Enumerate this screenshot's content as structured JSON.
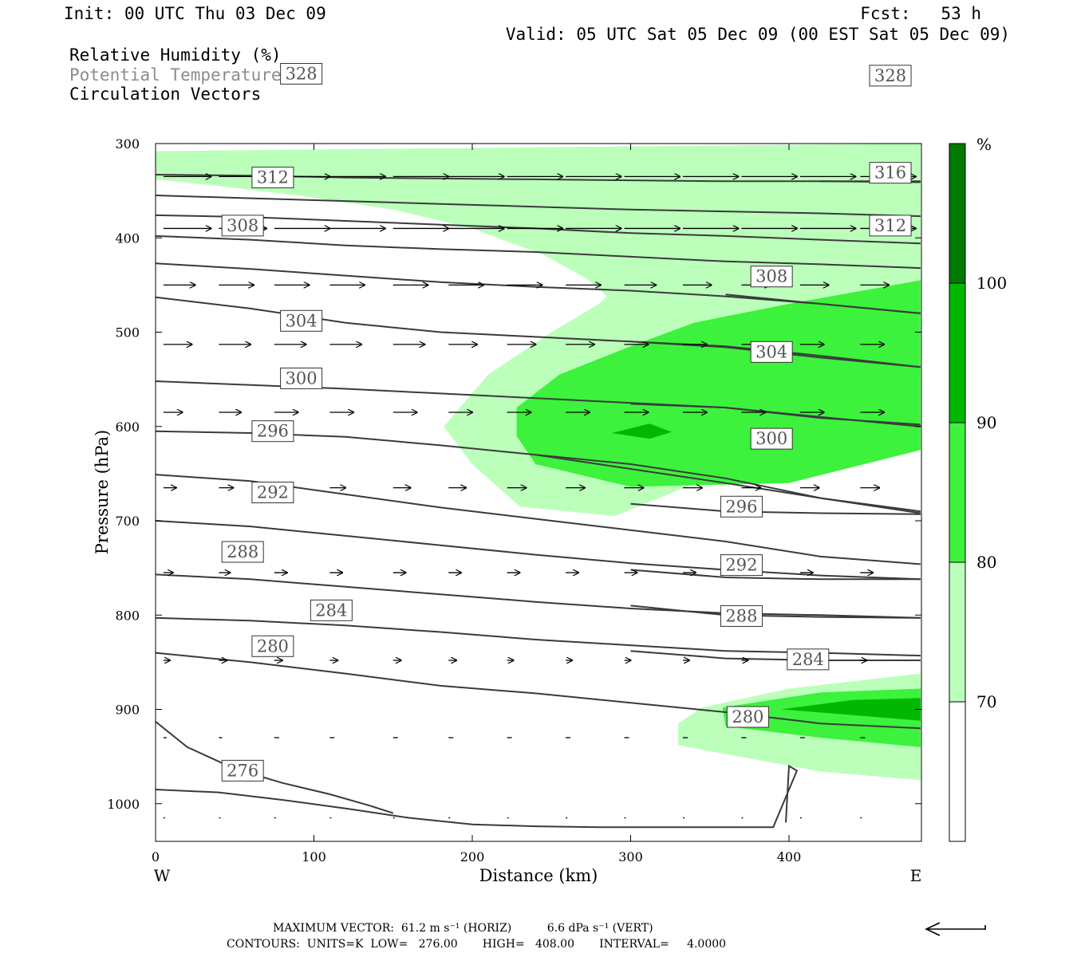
{
  "header": {
    "init": "Init: 00 UTC Thu 03 Dec 09",
    "fcst": "Fcst:   53 h",
    "valid": "Valid: 05 UTC Sat 05 Dec 09 (00 EST Sat 05 Dec 09)",
    "legend_lines": [
      "Relative Humidity (%)",
      "Potential Temperature (K)",
      "Circulation Vectors"
    ]
  },
  "footer": {
    "max_vector": "MAXIMUM VECTOR:  61.2 m s⁻¹ (HORIZ)          6.6 dPa s⁻¹ (VERT)",
    "contours": "CONTOURS:  UNITS=K  LOW=   276.00       HIGH=   408.00       INTERVAL=     4.0000"
  },
  "colors": {
    "rh70": "#bbffbb",
    "rh80": "#3cf23c",
    "rh90": "#00b800",
    "rh100": "#007a00",
    "contour": "#3a3a3a"
  },
  "chart_data": {
    "type": "contour",
    "xlabel": "Distance (km)",
    "ylabel": "Pressure (hPa)",
    "xlim": [
      0,
      483
    ],
    "ylim": [
      300,
      1040
    ],
    "y_inverted": true,
    "x_ticks": [
      "0",
      "100",
      "200",
      "300",
      "400"
    ],
    "y_ticks": [
      "300",
      "400",
      "500",
      "600",
      "700",
      "800",
      "900",
      "1000"
    ],
    "x_end_labels": {
      "left": "W",
      "right": "E"
    },
    "colorbar": {
      "unit": "%",
      "levels": [
        "70",
        "80",
        "90",
        "100"
      ]
    },
    "rh_regions": [
      {
        "level": 70,
        "points": [
          [
            0,
            308
          ],
          [
            483,
            300
          ],
          [
            483,
            975
          ],
          [
            420,
            966
          ],
          [
            330,
            938
          ],
          [
            330,
            915
          ],
          [
            345,
            898
          ],
          [
            400,
            878
          ],
          [
            483,
            862
          ],
          [
            483,
            600
          ],
          [
            400,
            620
          ],
          [
            290,
            695
          ],
          [
            230,
            685
          ],
          [
            200,
            640
          ],
          [
            182,
            600
          ],
          [
            210,
            545
          ],
          [
            250,
            500
          ],
          [
            280,
            470
          ],
          [
            285,
            462
          ],
          [
            272,
            443
          ],
          [
            245,
            418
          ],
          [
            200,
            390
          ],
          [
            150,
            370
          ],
          [
            90,
            355
          ],
          [
            40,
            345
          ],
          [
            0,
            338
          ]
        ]
      },
      {
        "level": 80,
        "points": [
          [
            483,
            445
          ],
          [
            400,
            470
          ],
          [
            340,
            490
          ],
          [
            300,
            515
          ],
          [
            255,
            545
          ],
          [
            228,
            580
          ],
          [
            228,
            610
          ],
          [
            240,
            640
          ],
          [
            300,
            664
          ],
          [
            400,
            660
          ],
          [
            483,
            625
          ]
        ]
      },
      {
        "level": 80,
        "points": [
          [
            358,
            898
          ],
          [
            420,
            882
          ],
          [
            483,
            878
          ],
          [
            483,
            940
          ],
          [
            420,
            930
          ],
          [
            360,
            918
          ]
        ]
      },
      {
        "level": 90,
        "points": [
          [
            288,
            607
          ],
          [
            312,
            597
          ],
          [
            326,
            606
          ],
          [
            312,
            613
          ]
        ]
      },
      {
        "level": 90,
        "points": [
          [
            395,
            900
          ],
          [
            440,
            890
          ],
          [
            483,
            888
          ],
          [
            483,
            912
          ],
          [
            440,
            906
          ]
        ]
      }
    ],
    "theta_contours": [
      {
        "label": "276",
        "label_pos": [
          55,
          965
        ],
        "x": [
          0,
          20,
          50,
          80,
          110,
          135,
          150
        ],
        "p": [
          913,
          940,
          963,
          978,
          990,
          1002,
          1010
        ]
      },
      {
        "label": "280",
        "label_pos": [
          374,
          908
        ],
        "x": [
          0,
          40,
          80,
          120,
          160,
          200,
          240,
          280,
          320,
          360,
          390,
          405,
          400,
          398
        ],
        "p": [
          985,
          988,
          996,
          1005,
          1015,
          1022,
          1024,
          1025,
          1025,
          1025,
          1025,
          965,
          960,
          1020
        ]
      },
      {
        "label": "280",
        "label_pos": [
          74,
          833
        ],
        "x": [
          0,
          60,
          120,
          180,
          240,
          300,
          360,
          420,
          483
        ],
        "p": [
          840,
          850,
          862,
          875,
          883,
          893,
          903,
          915,
          920
        ]
      },
      {
        "label": "284",
        "label_pos": [
          111,
          795
        ],
        "x": [
          0,
          60,
          120,
          180,
          240,
          300,
          360,
          420,
          483
        ],
        "p": [
          803,
          806,
          811,
          818,
          826,
          832,
          838,
          840,
          843
        ]
      },
      {
        "label": "284",
        "label_pos": [
          412,
          847
        ],
        "x": [
          300,
          360,
          420,
          483
        ],
        "p": [
          838,
          846,
          848,
          848
        ]
      },
      {
        "label": "288",
        "label_pos": [
          55,
          733
        ],
        "x": [
          0,
          60,
          120,
          180,
          240,
          300,
          360,
          420,
          483
        ],
        "p": [
          757,
          762,
          770,
          778,
          786,
          793,
          798,
          800,
          803
        ]
      },
      {
        "label": "288",
        "label_pos": [
          370,
          801
        ],
        "x": [
          300,
          360,
          420,
          483
        ],
        "p": [
          790,
          800,
          802,
          803
        ]
      },
      {
        "label": "292",
        "label_pos": [
          74,
          670
        ],
        "x": [
          0,
          60,
          120,
          180,
          240,
          300,
          360,
          420,
          483
        ],
        "p": [
          700,
          706,
          716,
          726,
          736,
          745,
          752,
          758,
          762
        ]
      },
      {
        "label": "292",
        "label_pos": [
          370,
          747
        ],
        "x": [
          300,
          360,
          420,
          483
        ],
        "p": [
          752,
          760,
          762,
          762
        ]
      },
      {
        "label": "296",
        "label_pos": [
          74,
          605
        ],
        "x": [
          0,
          60,
          120,
          180,
          240,
          300,
          360,
          420,
          483
        ],
        "p": [
          651,
          658,
          672,
          686,
          698,
          710,
          722,
          738,
          746
        ]
      },
      {
        "label": "296",
        "label_pos": [
          370,
          685
        ],
        "x": [
          300,
          360,
          420,
          483
        ],
        "p": [
          682,
          690,
          692,
          693
        ]
      },
      {
        "label": "300",
        "label_pos": [
          92,
          549
        ],
        "x": [
          0,
          60,
          120,
          180,
          240,
          300,
          360,
          420,
          483
        ],
        "p": [
          605,
          607,
          611,
          620,
          630,
          645,
          660,
          676,
          692
        ]
      },
      {
        "label": "300",
        "label_pos": [
          389,
          613
        ],
        "x": [
          240,
          300,
          360,
          420,
          483
        ],
        "p": [
          630,
          640,
          655,
          676,
          690
        ]
      },
      {
        "label": "304",
        "label_pos": [
          92,
          488
        ],
        "x": [
          0,
          60,
          120,
          180,
          240,
          300,
          360,
          420,
          483
        ],
        "p": [
          552,
          556,
          560,
          565,
          570,
          575,
          580,
          590,
          600
        ]
      },
      {
        "label": "304",
        "label_pos": [
          389,
          521
        ],
        "x": [
          300,
          360,
          420,
          483
        ],
        "p": [
          576,
          580,
          591,
          598
        ]
      },
      {
        "label": "308",
        "label_pos": [
          55,
          387
        ],
        "x": [
          0,
          60,
          120,
          180,
          240,
          300,
          360,
          420,
          483
        ],
        "p": [
          463,
          475,
          490,
          500,
          505,
          510,
          515,
          525,
          537
        ]
      },
      {
        "label": "308",
        "label_pos": [
          389,
          441
        ],
        "x": [
          300,
          360,
          420,
          483
        ],
        "p": [
          510,
          516,
          527,
          537
        ]
      },
      {
        "label": "312",
        "label_pos": [
          74,
          336
        ],
        "x": [
          0,
          60,
          120,
          180,
          240,
          300,
          360,
          420,
          483
        ],
        "p": [
          427,
          433,
          440,
          447,
          452,
          456,
          462,
          470,
          480
        ]
      },
      {
        "label": "312",
        "label_pos": [
          464,
          387
        ],
        "x": [
          360,
          420,
          483
        ],
        "p": [
          460,
          470,
          480
        ]
      },
      {
        "label": "316",
        "label_pos": [
          464,
          331
        ],
        "x": [
          0,
          60,
          120,
          180,
          240,
          300,
          360,
          420,
          483
        ],
        "p": [
          398,
          402,
          408,
          412,
          415,
          420,
          425,
          428,
          432
        ]
      },
      {
        "label": "",
        "label_pos": null,
        "x": [
          0,
          60,
          120,
          180,
          240,
          300,
          360,
          420,
          483
        ],
        "p": [
          376,
          378,
          382,
          386,
          390,
          395,
          398,
          402,
          406
        ]
      },
      {
        "label": "",
        "label_pos": null,
        "x": [
          0,
          60,
          120,
          180,
          240,
          300,
          360,
          420,
          483
        ],
        "p": [
          355,
          358,
          361,
          364,
          367,
          370,
          372,
          374,
          377
        ]
      },
      {
        "label": "328",
        "label_pos": [
          92,
          226
        ],
        "x": [
          0,
          60,
          120,
          180,
          240,
          300,
          360,
          420,
          483
        ],
        "p": [
          333,
          334,
          336,
          337,
          338,
          339,
          340,
          340,
          341
        ]
      },
      {
        "label": "328",
        "label_pos": [
          464,
          228
        ],
        "x": [
          420,
          483
        ],
        "p": [
          340,
          340
        ]
      }
    ],
    "vectors": {
      "x": [
        5,
        40,
        75,
        110,
        150,
        185,
        222,
        259,
        296,
        333,
        370,
        407,
        445
      ],
      "rows": [
        {
          "p": 335,
          "len": [
            30,
            30,
            35,
            35,
            35,
            35,
            35,
            35,
            35,
            35,
            35,
            35,
            35
          ]
        },
        {
          "p": 390,
          "len": [
            30,
            30,
            35,
            35,
            35,
            35,
            35,
            35,
            35,
            35,
            35,
            35,
            35
          ]
        },
        {
          "p": 450,
          "len": [
            20,
            22,
            22,
            22,
            22,
            22,
            22,
            22,
            20,
            18,
            18,
            18,
            18
          ]
        },
        {
          "p": 513,
          "len": [
            18,
            20,
            20,
            20,
            20,
            18,
            18,
            18,
            15,
            15,
            15,
            15,
            15
          ]
        },
        {
          "p": 585,
          "len": [
            12,
            14,
            15,
            15,
            15,
            15,
            15,
            15,
            15,
            15,
            15,
            15,
            15
          ]
        },
        {
          "p": 665,
          "len": [
            8,
            9,
            10,
            10,
            11,
            11,
            12,
            12,
            12,
            12,
            12,
            12,
            12
          ]
        },
        {
          "p": 755,
          "len": [
            6,
            7,
            8,
            8,
            8,
            8,
            8,
            8,
            8,
            8,
            8,
            8,
            8
          ]
        },
        {
          "p": 848,
          "len": [
            4,
            5,
            5,
            5,
            5,
            5,
            4,
            4,
            4,
            4,
            4,
            4,
            4
          ]
        },
        {
          "p": 930,
          "len": [
            2,
            2,
            3,
            3,
            3,
            3,
            3,
            3,
            3,
            3,
            3,
            3,
            3
          ]
        },
        {
          "p": 1015,
          "len": [
            1,
            1,
            1,
            1,
            1,
            1,
            1,
            1,
            1,
            1,
            1,
            1,
            1
          ]
        }
      ]
    },
    "reference_vector": "westward arrow"
  }
}
